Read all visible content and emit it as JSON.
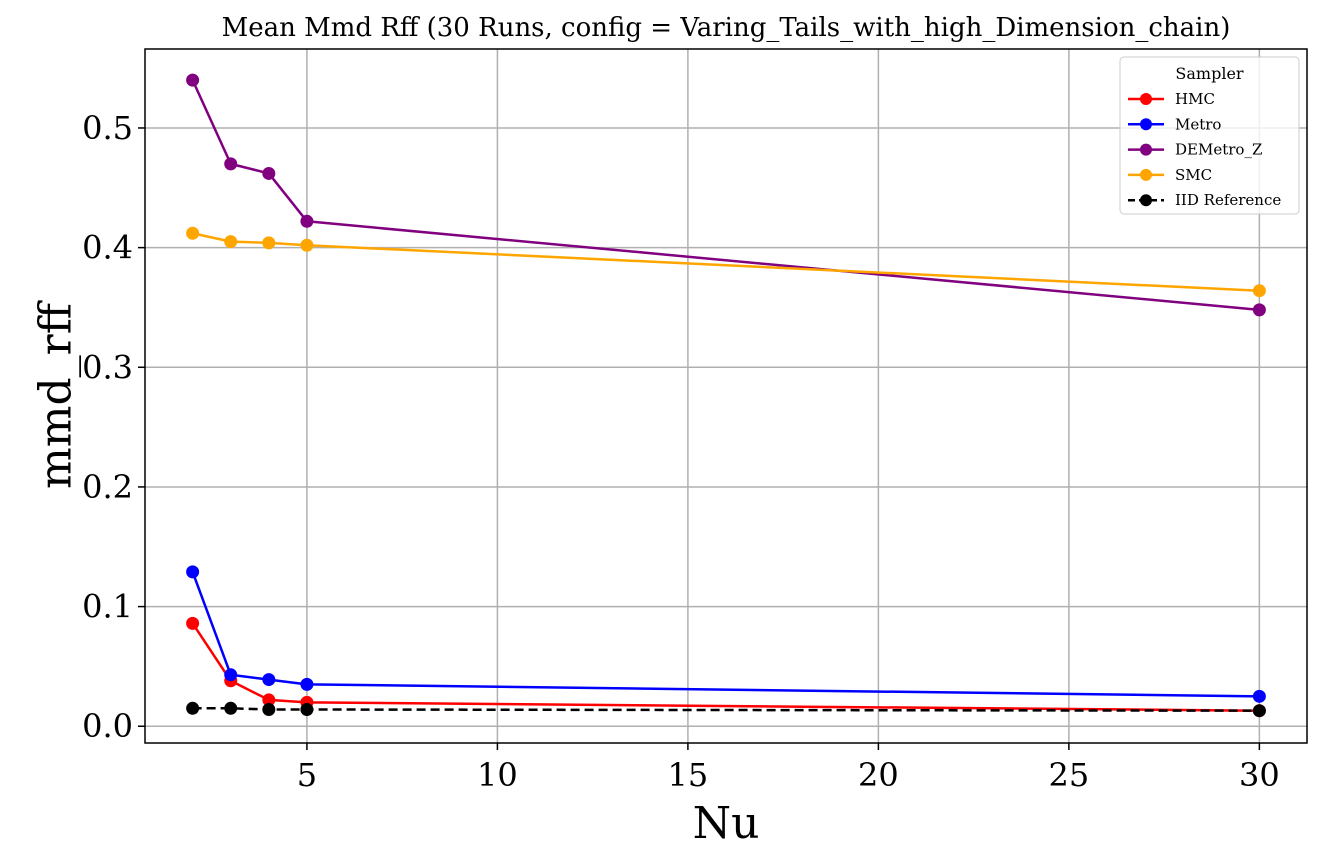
{
  "chart_data": {
    "type": "line",
    "title": "Mean Mmd Rff (30 Runs, config = Varing_Tails_with_high_Dimension_chain)",
    "xlabel": "Nu",
    "ylabel": "mmd_rff",
    "xlim": [
      0.75,
      31.25
    ],
    "ylim": [
      -0.014,
      0.566
    ],
    "xticks": [
      5,
      10,
      15,
      20,
      25,
      30
    ],
    "xtick_labels": [
      "5",
      "10",
      "15",
      "20",
      "25",
      "30"
    ],
    "yticks": [
      0.0,
      0.1,
      0.2,
      0.3,
      0.4,
      0.5
    ],
    "ytick_labels": [
      "0.0",
      "0.1",
      "0.2",
      "0.3",
      "0.4",
      "0.5"
    ],
    "grid": true,
    "legend": {
      "title": "Sampler",
      "position": "top-right"
    },
    "x": [
      2,
      3,
      4,
      5,
      30
    ],
    "series": [
      {
        "name": "HMC",
        "color": "#ff0000",
        "dashed": false,
        "values": [
          0.086,
          0.038,
          0.022,
          0.02,
          0.013
        ]
      },
      {
        "name": "Metro",
        "color": "#0000ff",
        "dashed": false,
        "values": [
          0.129,
          0.043,
          0.039,
          0.035,
          0.025
        ]
      },
      {
        "name": "DEMetro_Z",
        "color": "#800080",
        "dashed": false,
        "values": [
          0.54,
          0.47,
          0.462,
          0.422,
          0.348
        ]
      },
      {
        "name": "SMC",
        "color": "#ffa500",
        "dashed": false,
        "values": [
          0.412,
          0.405,
          0.404,
          0.402,
          0.364
        ]
      },
      {
        "name": "IID Reference",
        "color": "#000000",
        "dashed": true,
        "values": [
          0.015,
          0.015,
          0.014,
          0.014,
          0.013
        ]
      }
    ]
  }
}
